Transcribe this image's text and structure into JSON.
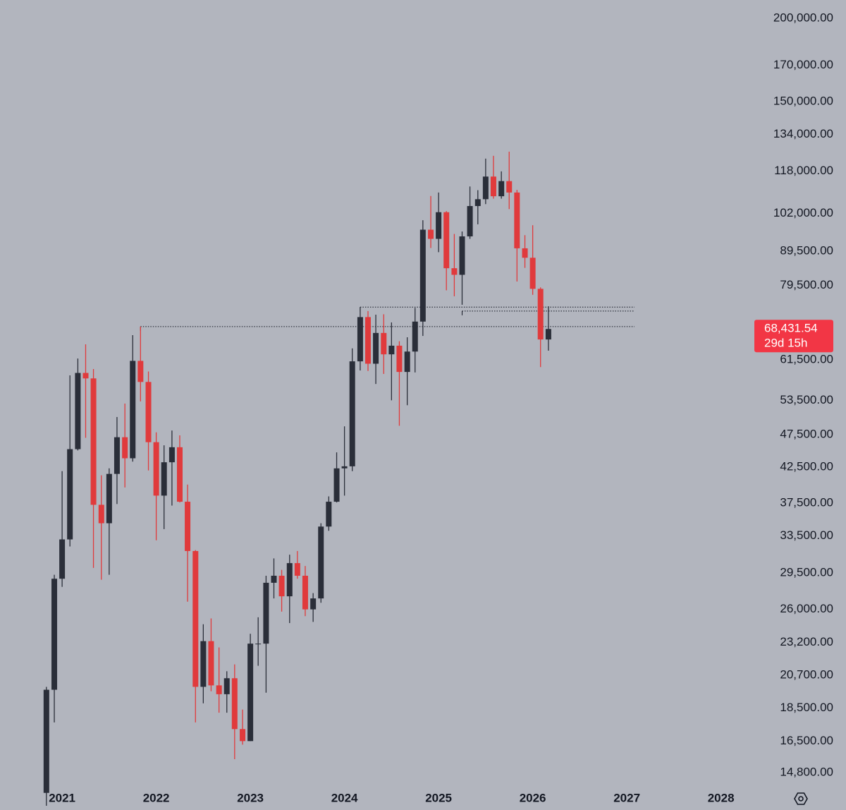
{
  "chart_data": {
    "type": "candlestick",
    "log_scale": true,
    "up_color": "#2a2e39",
    "down_color": "#e03a3c",
    "background": "#b2b5be",
    "xlim": [
      2020.34,
      2028.28
    ],
    "ylim": [
      14270,
      213000
    ],
    "xticks": [
      2021,
      2022,
      2023,
      2024,
      2025,
      2026,
      2027,
      2028
    ],
    "yticks": [
      {
        "value": 200000,
        "label": "200,000.00"
      },
      {
        "value": 170000,
        "label": "170,000.00"
      },
      {
        "value": 150000,
        "label": "150,000.00"
      },
      {
        "value": 134000,
        "label": "134,000.00"
      },
      {
        "value": 118000,
        "label": "118,000.00"
      },
      {
        "value": 102000,
        "label": "102,000.00"
      },
      {
        "value": 89500,
        "label": "89,500.00"
      },
      {
        "value": 79500,
        "label": "79,500.00"
      },
      {
        "value": 61500,
        "label": "61,500.00"
      },
      {
        "value": 53500,
        "label": "53,500.00"
      },
      {
        "value": 47500,
        "label": "47,500.00"
      },
      {
        "value": 42500,
        "label": "42,500.00"
      },
      {
        "value": 37500,
        "label": "37,500.00"
      },
      {
        "value": 33500,
        "label": "33,500.00"
      },
      {
        "value": 29500,
        "label": "29,500.00"
      },
      {
        "value": 26000,
        "label": "26,000.00"
      },
      {
        "value": 23200,
        "label": "23,200.00"
      },
      {
        "value": 20700,
        "label": "20,700.00"
      },
      {
        "value": 18500,
        "label": "18,500.00"
      },
      {
        "value": 16500,
        "label": "16,500.00"
      },
      {
        "value": 14800,
        "label": "14,800.00"
      }
    ],
    "last_price": {
      "value": 68431.54,
      "label": "68,431.54",
      "countdown": "29d 15h",
      "color": "#f23645"
    },
    "levels": [
      {
        "value": 69000,
        "from": 2021.833
      },
      {
        "value": 73800,
        "from": 2024.167
      },
      {
        "value": 72800,
        "from": 2025.25
      }
    ],
    "candles": {
      "x": [
        2020.833,
        2020.917,
        2021,
        2021.083,
        2021.167,
        2021.25,
        2021.333,
        2021.417,
        2021.5,
        2021.583,
        2021.667,
        2021.75,
        2021.833,
        2021.917,
        2022,
        2022.083,
        2022.167,
        2022.25,
        2022.333,
        2022.417,
        2022.5,
        2022.583,
        2022.667,
        2022.75,
        2022.833,
        2022.917,
        2023,
        2023.083,
        2023.167,
        2023.25,
        2023.333,
        2023.417,
        2023.5,
        2023.583,
        2023.667,
        2023.75,
        2023.833,
        2023.917,
        2024,
        2024.083,
        2024.167,
        2024.25,
        2024.333,
        2024.417,
        2024.5,
        2024.583,
        2024.667,
        2024.75,
        2024.833,
        2024.917,
        2025,
        2025.083,
        2025.167,
        2025.25,
        2025.333,
        2025.417,
        2025.5,
        2025.583,
        2025.667,
        2025.75,
        2025.833,
        2025.917,
        2026,
        2026.083,
        2026.167
      ],
      "open": [
        13800,
        19700,
        28900,
        33100,
        45200,
        58800,
        57700,
        37300,
        35000,
        41500,
        47100,
        43800,
        61300,
        57000,
        46300,
        38500,
        43200,
        45500,
        37700,
        31800,
        19900,
        23300,
        20000,
        19400,
        20500,
        17200,
        16500,
        23100,
        23100,
        28500,
        29200,
        27200,
        30500,
        29200,
        26000,
        27000,
        34600,
        37700,
        42300,
        42600,
        61200,
        71300,
        60700,
        67500,
        62700,
        64600,
        59000,
        63300,
        70200,
        96400,
        93400,
        102400,
        84400,
        82500,
        94200,
        104600,
        107100,
        115800,
        108200,
        114000,
        109600,
        90400,
        87500,
        78600,
        66000
      ],
      "high": [
        19900,
        29300,
        41900,
        58300,
        61800,
        64900,
        59600,
        41300,
        42300,
        50500,
        52900,
        67000,
        69000,
        59100,
        47900,
        45800,
        48200,
        47400,
        40000,
        31900,
        24700,
        25200,
        22800,
        21000,
        21500,
        18400,
        23900,
        25300,
        29200,
        31000,
        29800,
        31400,
        31800,
        30200,
        27500,
        35000,
        38400,
        44700,
        48900,
        64000,
        73800,
        72800,
        71900,
        72000,
        70000,
        65600,
        66500,
        73600,
        99600,
        108300,
        109600,
        102800,
        95000,
        95800,
        111900,
        110500,
        123200,
        124400,
        117900,
        126200,
        110600,
        94600,
        97900,
        79000,
        74000
      ],
      "low": [
        13200,
        17600,
        28100,
        32300,
        45000,
        47000,
        30000,
        28800,
        29300,
        37400,
        39600,
        43300,
        53300,
        42000,
        33000,
        34300,
        37200,
        37600,
        26700,
        17600,
        18800,
        19600,
        18200,
        18200,
        15500,
        16300,
        16500,
        21400,
        19500,
        27000,
        25800,
        24800,
        28900,
        25400,
        24900,
        26600,
        34100,
        37600,
        38500,
        41900,
        59300,
        59200,
        56600,
        58600,
        53500,
        49000,
        52600,
        58900,
        66800,
        90500,
        89200,
        78200,
        76600,
        74400,
        93400,
        98200,
        105300,
        107300,
        107300,
        103500,
        80600,
        84500,
        77000,
        60000,
        63500
      ],
      "close": [
        19700,
        28900,
        33100,
        45200,
        58800,
        57700,
        37300,
        35000,
        41500,
        47100,
        43800,
        61300,
        57000,
        46300,
        38500,
        43200,
        45500,
        37700,
        31800,
        19900,
        23300,
        20000,
        19400,
        20500,
        17200,
        16500,
        23100,
        23100,
        28500,
        29200,
        27200,
        30500,
        29200,
        26000,
        27000,
        34600,
        37700,
        42300,
        42600,
        61200,
        71300,
        60700,
        67500,
        62700,
        64600,
        59000,
        63300,
        70200,
        96400,
        93400,
        102400,
        84400,
        82500,
        94200,
        104600,
        107100,
        115800,
        108200,
        114000,
        109600,
        90400,
        87500,
        78600,
        66000,
        68431.54
      ]
    }
  }
}
